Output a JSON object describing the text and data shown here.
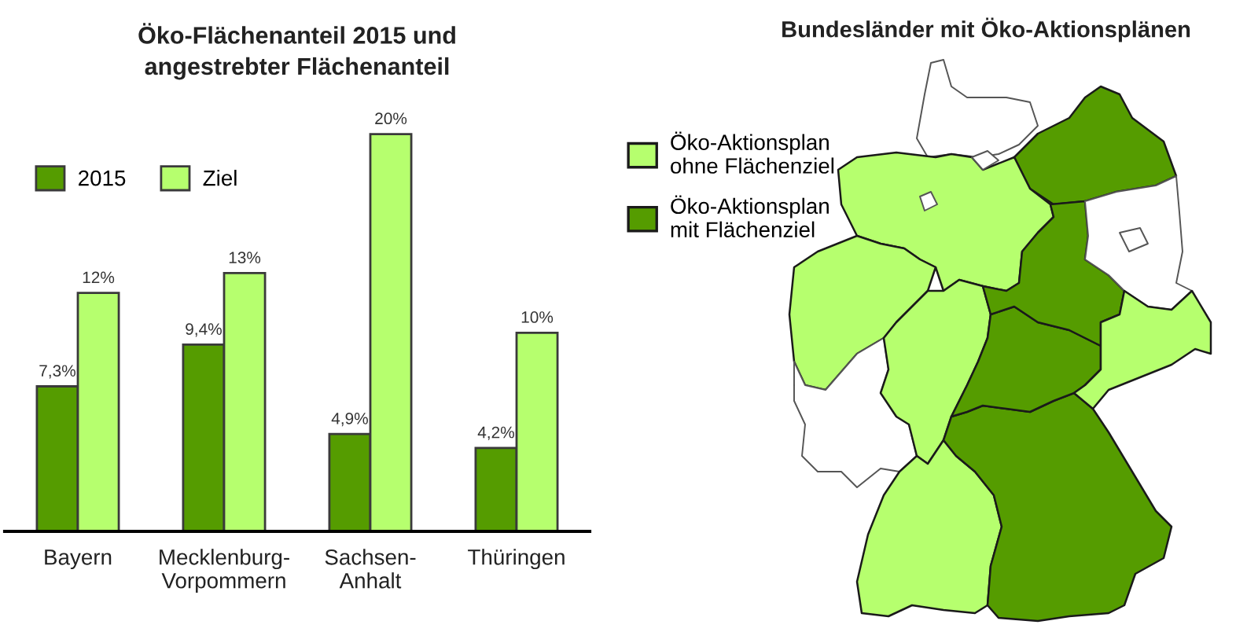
{
  "chart_data": [
    {
      "type": "bar",
      "title": "Öko-Flächenanteil 2015 und\nangestrebter Flächenanteil",
      "categories": [
        "Bayern",
        "Mecklenburg-Vorpommern",
        "Sachsen-Anhalt",
        "Thüringen"
      ],
      "series": [
        {
          "name": "2015",
          "color": "#559c00",
          "values": [
            7.3,
            9.4,
            4.9,
            4.2
          ],
          "value_labels": [
            "7,3%",
            "9,4%",
            "4,9%",
            "4,2%"
          ]
        },
        {
          "name": "Ziel",
          "color": "#b6ff6e",
          "values": [
            12,
            13,
            20,
            10
          ],
          "value_labels": [
            "12%",
            "13%",
            "20%",
            "10%"
          ]
        }
      ],
      "legend": "top left",
      "tick_labels": "x"
    },
    {
      "type": "other",
      "title": "Bundesländer mit Öko-Aktionsplänen",
      "series": [
        {
          "name": "Öko-Aktionsplan\nohne Flächenziel",
          "color": "#b6ff6e"
        },
        {
          "name": "Öko-Aktionsplan\nmit Flächenziel",
          "color": "#559c00"
        }
      ],
      "legend": "top left"
    }
  ]
}
